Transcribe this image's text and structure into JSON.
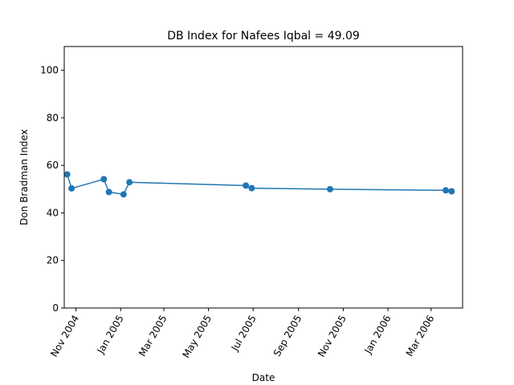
{
  "chart_data": {
    "type": "line",
    "title": "DB Index for Nafees Iqbal = 49.09",
    "xlabel": "Date",
    "ylabel": "Don Bradman Index",
    "ylim": [
      0,
      110
    ],
    "xlim": [
      "2004-10-16",
      "2006-04-13"
    ],
    "yticks": [
      0,
      20,
      40,
      60,
      80,
      100
    ],
    "xticks": [
      {
        "date": "2004-11-01",
        "label": "Nov 2004"
      },
      {
        "date": "2005-01-01",
        "label": "Jan 2005"
      },
      {
        "date": "2005-03-01",
        "label": "Mar 2005"
      },
      {
        "date": "2005-05-01",
        "label": "May 2005"
      },
      {
        "date": "2005-07-01",
        "label": "Jul 2005"
      },
      {
        "date": "2005-09-01",
        "label": "Sep 2005"
      },
      {
        "date": "2005-11-01",
        "label": "Nov 2005"
      },
      {
        "date": "2006-01-01",
        "label": "Jan 2006"
      },
      {
        "date": "2006-03-01",
        "label": "Mar 2006"
      }
    ],
    "grid": false,
    "series": [
      {
        "color": "#1f77b4",
        "marker": "circle",
        "points": [
          {
            "x": "2004-10-20",
            "y": 56.2
          },
          {
            "x": "2004-10-26",
            "y": 50.3
          },
          {
            "x": "2004-12-09",
            "y": 54.2
          },
          {
            "x": "2004-12-16",
            "y": 48.8
          },
          {
            "x": "2005-01-05",
            "y": 47.8
          },
          {
            "x": "2005-01-13",
            "y": 52.9
          },
          {
            "x": "2005-06-21",
            "y": 51.5
          },
          {
            "x": "2005-06-29",
            "y": 50.4
          },
          {
            "x": "2005-10-14",
            "y": 50.0
          },
          {
            "x": "2006-03-21",
            "y": 49.5
          },
          {
            "x": "2006-03-29",
            "y": 49.09
          }
        ]
      }
    ]
  }
}
